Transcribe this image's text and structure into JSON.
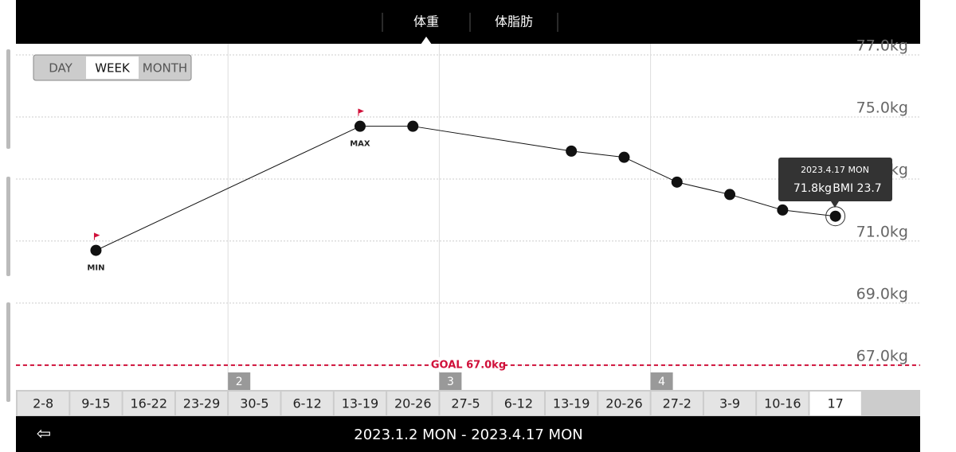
{
  "tabs": [
    "体重",
    "体脂肪"
  ],
  "range_buttons": [
    "DAY",
    "WEEK",
    "MONTH"
  ],
  "chart_data": {
    "type": "line",
    "categories": [
      "2-8",
      "9-15",
      "16-22",
      "23-29",
      "30-5",
      "6-12",
      "13-19",
      "20-26",
      "27-5",
      "6-12",
      "13-19",
      "20-26",
      "27-2",
      "3-9",
      "10-16",
      "17"
    ],
    "series": [
      {
        "name": "体重",
        "color": "#111111",
        "values": [
          null,
          70.7,
          null,
          null,
          null,
          null,
          74.7,
          74.7,
          null,
          null,
          73.9,
          73.7,
          72.9,
          72.5,
          72.0,
          71.8
        ]
      }
    ],
    "ylim": [
      66.2,
      77.36
    ],
    "yticks": [
      {
        "value": 67,
        "label": "67.0kg"
      },
      {
        "value": 69,
        "label": "69.0kg"
      },
      {
        "value": 71,
        "label": "71.0kg"
      },
      {
        "value": 73,
        "label": "73.0kg"
      },
      {
        "value": 75,
        "label": "75.0kg"
      },
      {
        "value": 77,
        "label": "77.0kg"
      }
    ],
    "goal": {
      "value": 67,
      "label": "GOAL 67.0kg",
      "color": "#d0103a"
    },
    "annotations": [
      "MIN",
      "MAX"
    ],
    "month_markers": [
      "2",
      "3",
      "4"
    ],
    "grid": true
  },
  "tooltip": {
    "date": "2023.4.17 MON",
    "weight": "71.8kg",
    "bmi": "BMI 23.7"
  },
  "footer": {
    "date_range": "2023.1.2 MON - 2023.4.17 MON"
  }
}
